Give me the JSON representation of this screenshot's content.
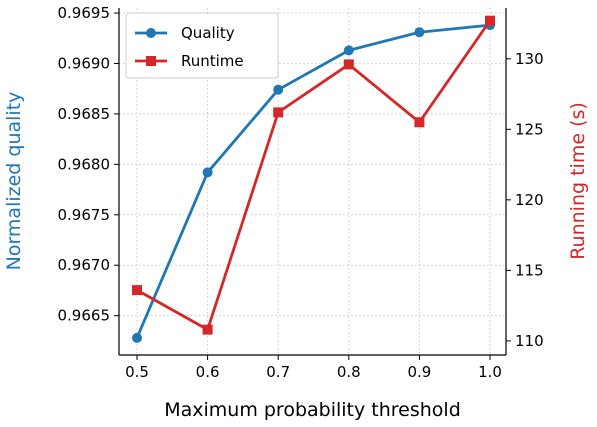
{
  "chart_data": {
    "type": "line",
    "x": [
      0.5,
      0.6,
      0.7,
      0.8,
      0.9,
      1.0
    ],
    "x_ticks": [
      "0.5",
      "0.6",
      "0.7",
      "0.8",
      "0.9",
      "1.0"
    ],
    "xlabel": "Maximum probability threshold",
    "ylabel_left": "Normalized quality",
    "ylabel_right": "Running time (s)",
    "ylim_left": [
      0.96611,
      0.96955
    ],
    "ylim_right": [
      109.0,
      133.6
    ],
    "y_ticks_left": [
      "0.9665",
      "0.9670",
      "0.9675",
      "0.9680",
      "0.9685",
      "0.9690",
      "0.9695"
    ],
    "y_ticks_right": [
      "110",
      "115",
      "120",
      "125",
      "130"
    ],
    "grid": true,
    "legend_position": "top-left",
    "series": [
      {
        "name": "Quality",
        "axis": "left",
        "marker": "circle",
        "color": "#1f77b4",
        "values": [
          0.96628,
          0.96792,
          0.96874,
          0.96913,
          0.96931,
          0.96938
        ]
      },
      {
        "name": "Runtime",
        "axis": "right",
        "marker": "square",
        "color": "#d62728",
        "values": [
          113.6,
          110.8,
          126.2,
          129.6,
          125.5,
          132.7
        ]
      }
    ]
  }
}
